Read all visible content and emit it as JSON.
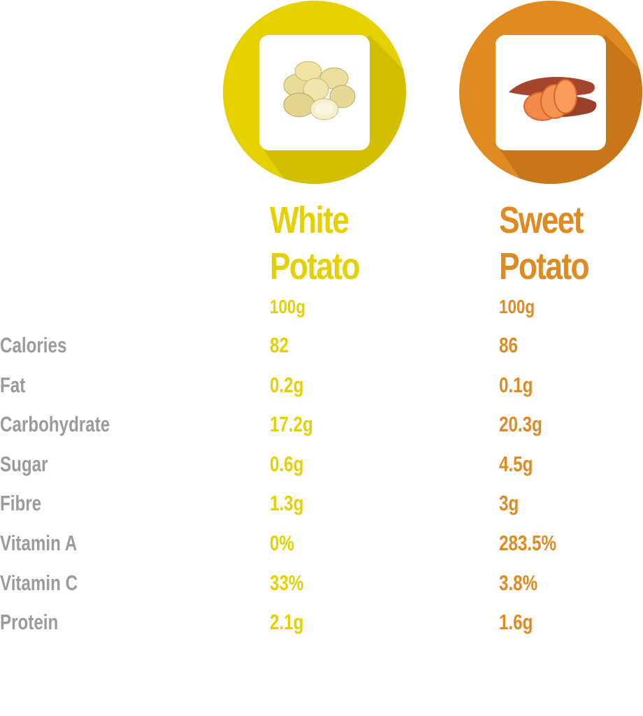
{
  "colors": {
    "white_potato": "#e6d100",
    "sweet_potato": "#e08a22",
    "label": "#9b9b9b"
  },
  "white_potato": {
    "title_line1": "White",
    "title_line2": "Potato",
    "serving": "100g",
    "image": "white-potatoes-image"
  },
  "sweet_potato": {
    "title_line1": "Sweet",
    "title_line2": "Potato",
    "serving": "100g",
    "image": "sweet-potato-image"
  },
  "rows": [
    {
      "label": "Calories",
      "white": "82",
      "sweet": "86"
    },
    {
      "label": "Fat",
      "white": "0.2g",
      "sweet": "0.1g"
    },
    {
      "label": "Carbohydrate",
      "white": "17.2g",
      "sweet": "20.3g"
    },
    {
      "label": "Sugar",
      "white": "0.6g",
      "sweet": "4.5g"
    },
    {
      "label": "Fibre",
      "white": "1.3g",
      "sweet": "3g"
    },
    {
      "label": "Vitamin A",
      "white": "0%",
      "sweet": "283.5%"
    },
    {
      "label": "Vitamin C",
      "white": "33%",
      "sweet": "3.8%"
    },
    {
      "label": "Protein",
      "white": "2.1g",
      "sweet": "1.6g"
    }
  ]
}
